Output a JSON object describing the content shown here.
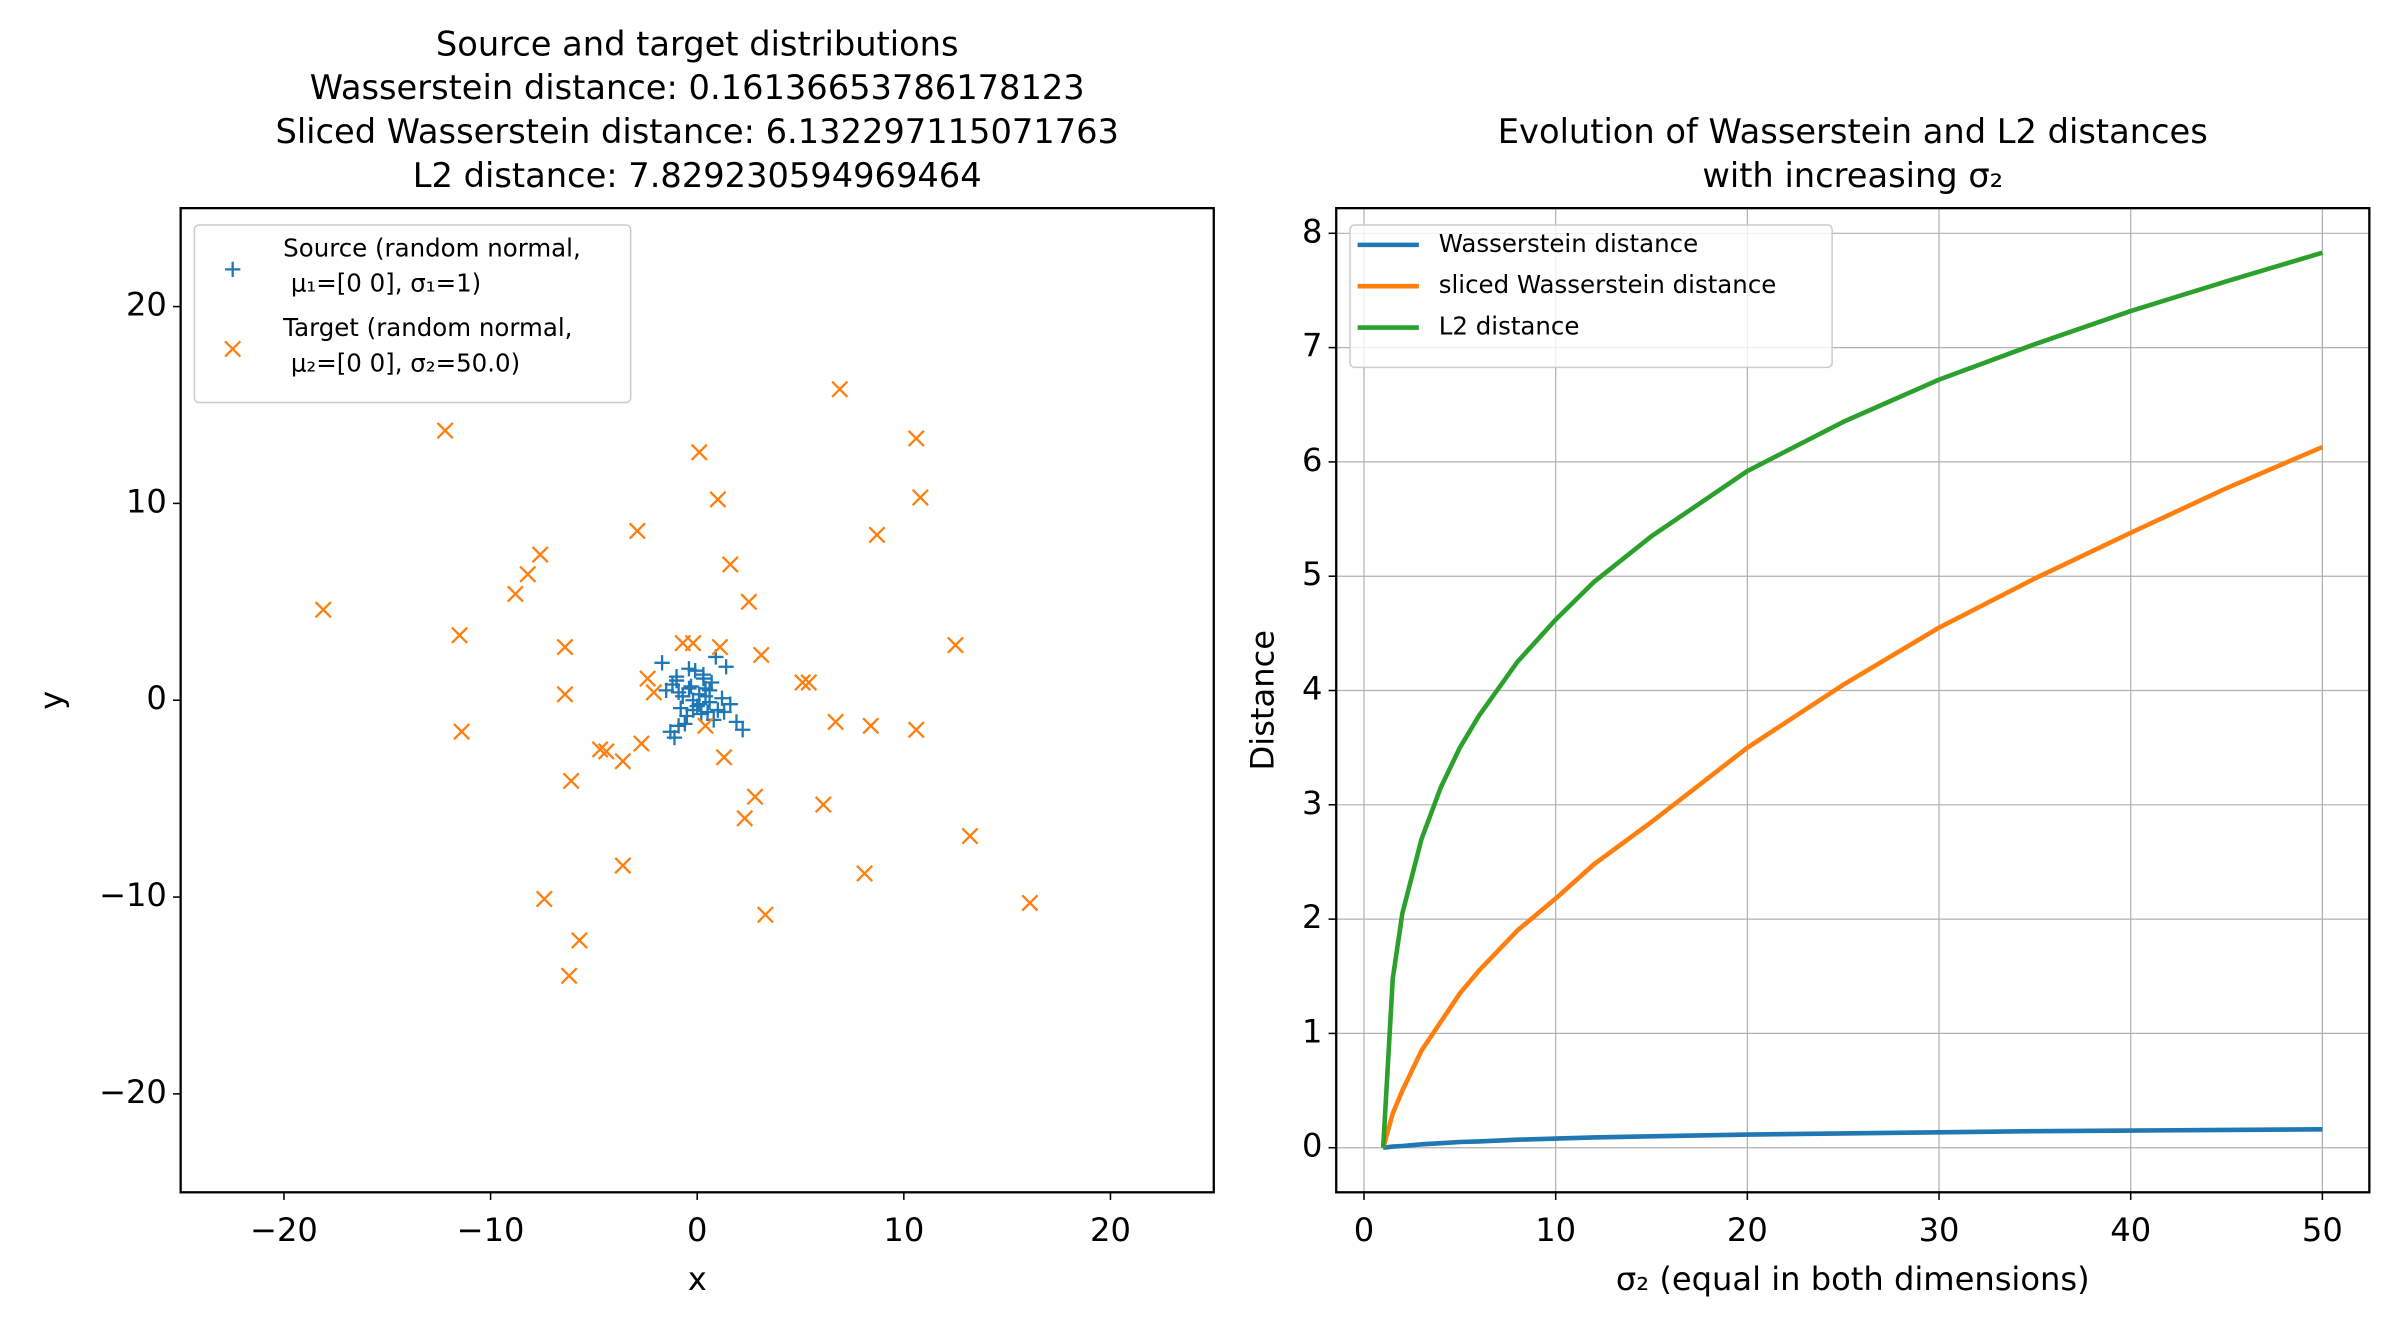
{
  "chart_data": [
    {
      "type": "scatter",
      "title": [
        "Source and target distributions",
        "Wasserstein distance: 0.16136653786178123",
        "Sliced Wasserstein distance: 6.132297115071763",
        "L2 distance: 7.829230594969464"
      ],
      "x_label": "x",
      "y_label": "y",
      "xlim": [
        -25,
        25
      ],
      "ylim": [
        -25,
        25
      ],
      "xticks": [
        {
          "value": -20,
          "label": "−20"
        },
        {
          "value": -10,
          "label": "−10"
        },
        0,
        10,
        20
      ],
      "yticks": [
        {
          "value": -20,
          "label": "−20"
        },
        {
          "value": -10,
          "label": "−10"
        },
        0,
        10,
        20
      ],
      "grid": false,
      "legend": "upper left",
      "series": [
        {
          "name": "Source (random normal,\nμ₁=[0 0], σ₁=1)",
          "color": "#1f77b4",
          "marker": "+",
          "x": [
            -1.7,
            -1.0,
            -1.2,
            0.9,
            1.4,
            0.3,
            -0.4,
            0.1,
            0.6,
            -0.8,
            -0.2,
            0.4,
            1.0,
            -1.3,
            -0.6,
            0.2,
            -0.1,
            0.7,
            1.6,
            2.2,
            -1.1,
            -0.9,
            0.0,
            0.5,
            -0.3,
            1.2,
            -0.5,
            0.8,
            -1.5,
            0.3,
            -0.7,
            0.1,
            1.9,
            -1.0,
            0.6,
            -0.2,
            0.4,
            -0.4,
            1.3,
            -0.9
          ],
          "y": [
            1.9,
            1.0,
            0.8,
            2.2,
            1.7,
            1.1,
            0.6,
            0.3,
            -0.1,
            -0.4,
            0.0,
            0.2,
            -0.5,
            -1.6,
            -1.2,
            -0.7,
            1.5,
            0.9,
            -0.2,
            -1.5,
            -1.9,
            0.4,
            -0.3,
            -0.6,
            0.7,
            0.1,
            -0.8,
            -1.0,
            0.5,
            1.3,
            0.2,
            -0.2,
            -1.1,
            1.2,
            0.5,
            -0.5,
            0.6,
            1.6,
            -0.6,
            -1.3
          ]
        },
        {
          "name": "Target (random normal,\nμ₂=[0 0], σ₂=50.0)",
          "color": "#ff7f0e",
          "marker": "x",
          "x": [
            6.9,
            -12.2,
            0.1,
            10.6,
            1.0,
            10.8,
            -2.9,
            8.7,
            -7.6,
            -8.2,
            -8.8,
            1.6,
            2.5,
            -18.1,
            -11.5,
            12.5,
            -6.4,
            -0.2,
            -0.7,
            1.1,
            3.1,
            -2.4,
            5.1,
            5.4,
            -6.4,
            -2.1,
            -11.4,
            6.7,
            8.4,
            10.6,
            0.4,
            -4.7,
            -4.4,
            -2.7,
            1.3,
            -3.6,
            -6.1,
            2.8,
            6.1,
            2.3,
            13.2,
            -3.6,
            8.1,
            -7.4,
            3.3,
            16.1,
            -5.7,
            -6.2
          ],
          "y": [
            15.8,
            13.7,
            12.6,
            13.3,
            10.2,
            10.3,
            8.6,
            8.4,
            7.4,
            6.4,
            5.4,
            6.9,
            5.0,
            4.6,
            3.3,
            2.8,
            2.7,
            2.9,
            2.9,
            2.7,
            2.3,
            1.1,
            0.9,
            0.9,
            0.3,
            0.4,
            -1.6,
            -1.1,
            -1.3,
            -1.5,
            -1.3,
            -2.5,
            -2.6,
            -2.2,
            -2.9,
            -3.1,
            -4.1,
            -4.9,
            -5.3,
            -6.0,
            -6.9,
            -8.4,
            -8.8,
            -10.1,
            -10.9,
            -10.3,
            -12.2,
            -14.0
          ]
        }
      ]
    },
    {
      "type": "line",
      "title": [
        "Evolution of Wasserstein and L2 distances",
        "with increasing σ₂"
      ],
      "x_label": "σ₂ (equal in both dimensions)",
      "y_label": "Distance",
      "xlim": [
        -1.45,
        52.45
      ],
      "ylim": [
        -0.39,
        8.22
      ],
      "xticks": [
        0,
        10,
        20,
        30,
        40,
        50
      ],
      "yticks": [
        0,
        1,
        2,
        3,
        4,
        5,
        6,
        7,
        8
      ],
      "grid": true,
      "legend": "upper left",
      "x": [
        1,
        1.5,
        2,
        3,
        4,
        5,
        6,
        8,
        10,
        12,
        15,
        20,
        25,
        30,
        35,
        40,
        45,
        50
      ],
      "series": [
        {
          "name": "Wasserstein distance",
          "color": "#1f77b4",
          "values": [
            0,
            0.01,
            0.015,
            0.03,
            0.04,
            0.05,
            0.055,
            0.07,
            0.08,
            0.09,
            0.1,
            0.115,
            0.125,
            0.135,
            0.145,
            0.15,
            0.156,
            0.161
          ]
        },
        {
          "name": "sliced Wasserstein distance",
          "color": "#ff7f0e",
          "values": [
            0,
            0.3,
            0.5,
            0.85,
            1.1,
            1.35,
            1.55,
            1.9,
            2.18,
            2.48,
            2.85,
            3.5,
            4.05,
            4.55,
            4.98,
            5.38,
            5.77,
            6.13
          ]
        },
        {
          "name": "L2 distance",
          "color": "#2ca02c",
          "values": [
            0,
            1.48,
            2.05,
            2.7,
            3.15,
            3.5,
            3.78,
            4.25,
            4.62,
            4.95,
            5.35,
            5.92,
            6.35,
            6.72,
            7.03,
            7.32,
            7.58,
            7.83
          ]
        }
      ]
    }
  ]
}
